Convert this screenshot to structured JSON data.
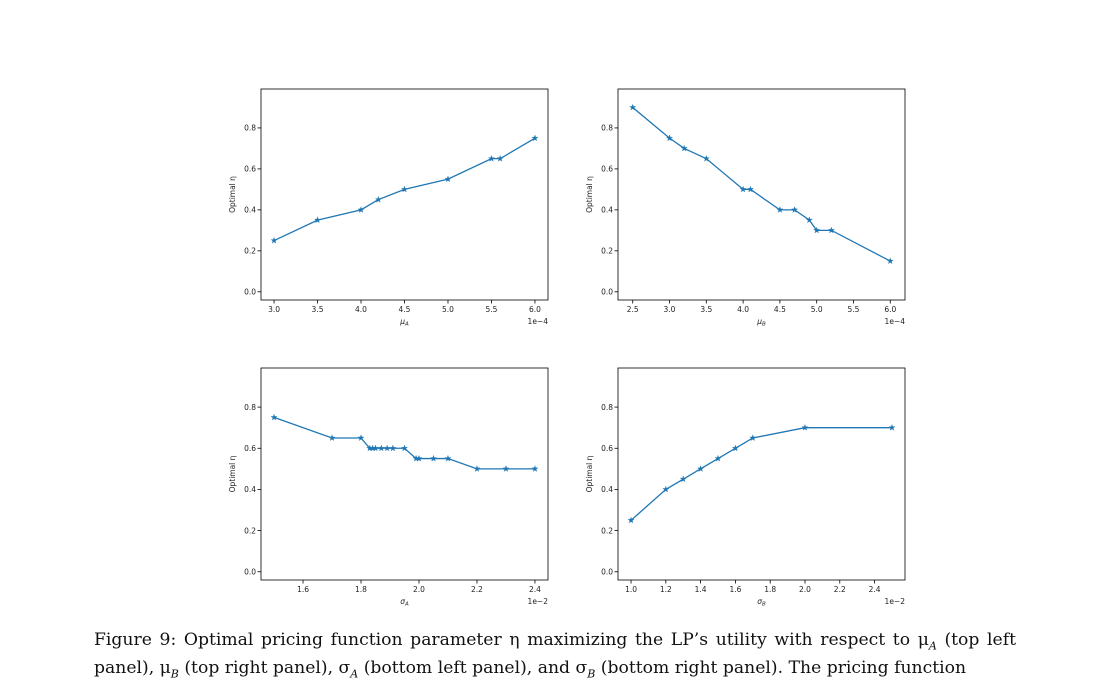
{
  "caption": {
    "line1": "Figure 9: Optimal pricing function parameter η maximizing the LP’s utility with respect to μ",
    "line1_sub": "A",
    "line1_tail": " (top left",
    "line2": "panel), μ",
    "line2_sub": "B",
    "line2_mid": " (top right panel), σ",
    "line2_sub2": "A",
    "line2_mid2": " (bottom left panel), and σ",
    "line2_sub3": "B",
    "line2_tail": " (bottom right panel). The pricing function"
  },
  "colors": {
    "line": "#1f77b4",
    "axes": "#000000"
  },
  "chart_data": [
    {
      "type": "line",
      "panel": "top-left",
      "xlabel": "μA",
      "ylabel": "Optimal η",
      "offset_text": "1e−4",
      "xlim": [
        2.85,
        6.15
      ],
      "ylim": [
        -0.04,
        0.99
      ],
      "xticks": [
        3.0,
        3.5,
        4.0,
        4.5,
        5.0,
        5.5,
        6.0
      ],
      "xtick_labels": [
        "3.0",
        "3.5",
        "4.0",
        "4.5",
        "5.0",
        "5.5",
        "6.0"
      ],
      "yticks": [
        0.0,
        0.2,
        0.4,
        0.6,
        0.8
      ],
      "ytick_labels": [
        "0.0",
        "0.2",
        "0.4",
        "0.6",
        "0.8"
      ],
      "x": [
        3.0,
        3.5,
        4.0,
        4.2,
        4.5,
        5.0,
        5.5,
        5.6,
        6.0
      ],
      "y": [
        0.25,
        0.35,
        0.4,
        0.45,
        0.5,
        0.55,
        0.65,
        0.65,
        0.75
      ]
    },
    {
      "type": "line",
      "panel": "top-right",
      "xlabel": "μB",
      "ylabel": "Optimal η",
      "offset_text": "1e−4",
      "xlim": [
        2.3,
        6.2
      ],
      "ylim": [
        -0.04,
        0.99
      ],
      "xticks": [
        2.5,
        3.0,
        3.5,
        4.0,
        4.5,
        5.0,
        5.5,
        6.0
      ],
      "xtick_labels": [
        "2.5",
        "3.0",
        "3.5",
        "4.0",
        "4.5",
        "5.0",
        "5.5",
        "6.0"
      ],
      "yticks": [
        0.0,
        0.2,
        0.4,
        0.6,
        0.8
      ],
      "ytick_labels": [
        "0.0",
        "0.2",
        "0.4",
        "0.6",
        "0.8"
      ],
      "x": [
        2.5,
        3.0,
        3.2,
        3.5,
        4.0,
        4.1,
        4.5,
        4.7,
        4.9,
        5.0,
        5.2,
        6.0
      ],
      "y": [
        0.9,
        0.75,
        0.7,
        0.65,
        0.5,
        0.5,
        0.4,
        0.4,
        0.35,
        0.3,
        0.3,
        0.15
      ]
    },
    {
      "type": "line",
      "panel": "bottom-left",
      "xlabel": "σA",
      "ylabel": "Optimal η",
      "offset_text": "1e−2",
      "xlim": [
        1.455,
        2.445
      ],
      "ylim": [
        -0.04,
        0.99
      ],
      "xticks": [
        1.6,
        1.8,
        2.0,
        2.2,
        2.4
      ],
      "xtick_labels": [
        "1.6",
        "1.8",
        "2.0",
        "2.2",
        "2.4"
      ],
      "yticks": [
        0.0,
        0.2,
        0.4,
        0.6,
        0.8
      ],
      "ytick_labels": [
        "0.0",
        "0.2",
        "0.4",
        "0.6",
        "0.8"
      ],
      "x": [
        1.5,
        1.7,
        1.8,
        1.83,
        1.84,
        1.85,
        1.87,
        1.89,
        1.91,
        1.95,
        1.99,
        2.0,
        2.05,
        2.1,
        2.2,
        2.3,
        2.4
      ],
      "y": [
        0.75,
        0.65,
        0.65,
        0.6,
        0.6,
        0.6,
        0.6,
        0.6,
        0.6,
        0.6,
        0.55,
        0.55,
        0.55,
        0.55,
        0.5,
        0.5,
        0.5
      ]
    },
    {
      "type": "line",
      "panel": "bottom-right",
      "xlabel": "σB",
      "ylabel": "Optimal η",
      "offset_text": "1e−2",
      "xlim": [
        0.925,
        2.575
      ],
      "ylim": [
        -0.04,
        0.99
      ],
      "xticks": [
        1.0,
        1.2,
        1.4,
        1.6,
        1.8,
        2.0,
        2.2,
        2.4
      ],
      "xtick_labels": [
        "1.0",
        "1.2",
        "1.4",
        "1.6",
        "1.8",
        "2.0",
        "2.2",
        "2.4"
      ],
      "yticks": [
        0.0,
        0.2,
        0.4,
        0.6,
        0.8
      ],
      "ytick_labels": [
        "0.0",
        "0.2",
        "0.4",
        "0.6",
        "0.8"
      ],
      "x": [
        1.0,
        1.2,
        1.3,
        1.4,
        1.5,
        1.6,
        1.7,
        2.0,
        2.5
      ],
      "y": [
        0.25,
        0.4,
        0.45,
        0.5,
        0.55,
        0.6,
        0.65,
        0.7,
        0.7
      ]
    }
  ]
}
